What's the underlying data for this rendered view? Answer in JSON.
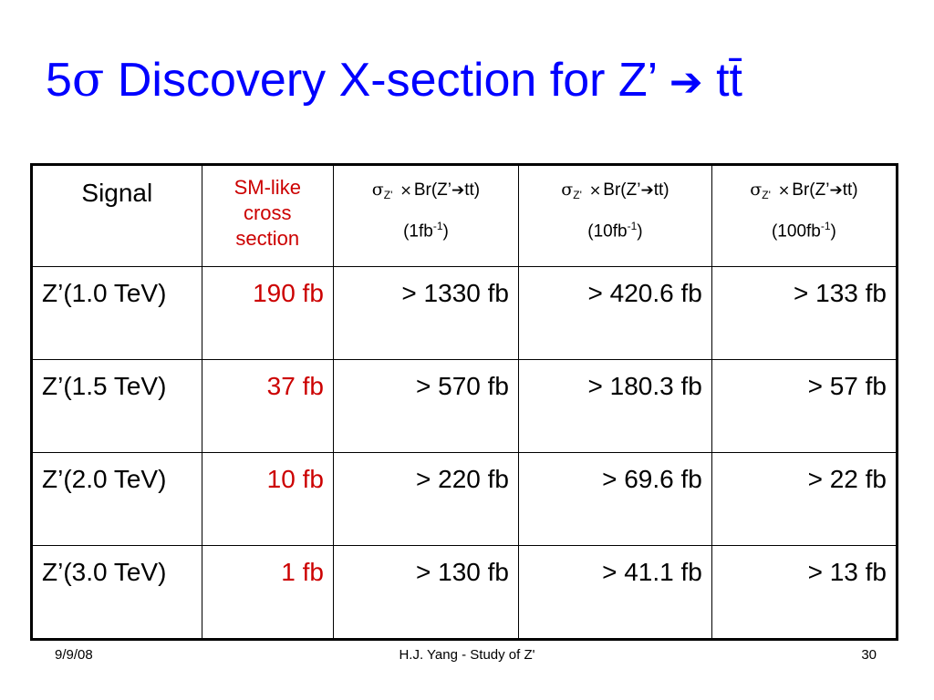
{
  "slide": {
    "title_prefix": "5",
    "title_sigma": "σ",
    "title_main": " Discovery X-section for Z’ ",
    "title_arrow": "➔",
    "title_suffix": " tt̄"
  },
  "table": {
    "header": {
      "signal": "Signal",
      "smlike": [
        "SM-like",
        "cross",
        "section"
      ],
      "formula": {
        "sigma": "σ",
        "sub": "Z'",
        "times": "×",
        "br": "Br(Z’",
        "arrow": "➔",
        "final": "tt)"
      },
      "lumis": [
        {
          "open": "(1fb",
          "sup": "-1",
          "close": ")"
        },
        {
          "open": "(10fb",
          "sup": "-1",
          "close": ")"
        },
        {
          "open": "(100fb",
          "sup": "-1",
          "close": ")"
        }
      ]
    },
    "rows": [
      {
        "signal": "Z’(1.0 TeV)",
        "smlike": "190 fb",
        "lumi1": "> 1330 fb",
        "lumi10": "> 420.6 fb",
        "lumi100": "> 133 fb"
      },
      {
        "signal": "Z’(1.5 TeV)",
        "smlike": "37 fb",
        "lumi1": "> 570 fb",
        "lumi10": "> 180.3 fb",
        "lumi100": "> 57 fb"
      },
      {
        "signal": "Z’(2.0 TeV)",
        "smlike": "10 fb",
        "lumi1": "> 220 fb",
        "lumi10": "> 69.6 fb",
        "lumi100": "> 22 fb"
      },
      {
        "signal": "Z’(3.0 TeV)",
        "smlike": "1 fb",
        "lumi1": "> 130 fb",
        "lumi10": "> 41.1 fb",
        "lumi100": "> 13 fb"
      }
    ]
  },
  "footer": {
    "date": "9/9/08",
    "center": "H.J. Yang - Study of Z'",
    "page": "30"
  },
  "colors": {
    "title": "#0000ff",
    "highlight": "#cc0000",
    "text": "#000000"
  }
}
